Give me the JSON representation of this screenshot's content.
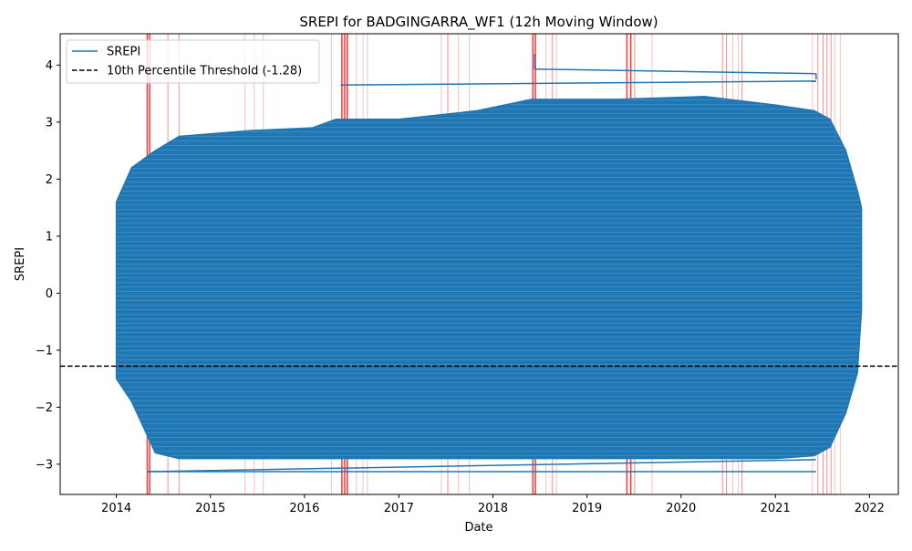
{
  "colors": {
    "series": "#1f77b4",
    "threshold": "#000000",
    "event_band": "#ff0000",
    "axes": "#000000",
    "background": "#ffffff"
  },
  "chart_data": {
    "type": "line",
    "title": "SREPI for BADGINGARRA_WF1 (12h Moving Window)",
    "xlabel": "Date",
    "ylabel": "SREPI",
    "x_type": "date",
    "xlim": [
      "2013-05-28",
      "2022-04-23"
    ],
    "ylim": [
      -3.53,
      4.55
    ],
    "x_ticks": [
      "2014",
      "2015",
      "2016",
      "2017",
      "2018",
      "2019",
      "2020",
      "2021",
      "2022"
    ],
    "x_tick_dates": [
      "2014-01-01",
      "2015-01-01",
      "2016-01-01",
      "2017-01-01",
      "2018-01-01",
      "2019-01-01",
      "2020-01-01",
      "2021-01-01",
      "2022-01-01"
    ],
    "y_ticks": [
      -3,
      -2,
      -1,
      0,
      1,
      2,
      3,
      4
    ],
    "y_tick_labels": [
      "−3",
      "−2",
      "−1",
      "0",
      "1",
      "2",
      "3",
      "4"
    ],
    "grid": false,
    "legend": {
      "position": "top-left",
      "entries": [
        {
          "label": "SREPI",
          "style": "solid-line",
          "color": "#1f77b4"
        },
        {
          "label": "10th Percentile Threshold (-1.28)",
          "style": "dashed-line",
          "color": "#000000"
        }
      ]
    },
    "threshold": {
      "value": -1.28,
      "label": "10th Percentile Threshold (-1.28)"
    },
    "data_start": "2014-01-01",
    "data_end": "2021-12-01",
    "series": [
      {
        "name": "SREPI",
        "envelope_points": [
          {
            "x": "2014-01-01",
            "y_max": 1.6,
            "y_min": -1.5
          },
          {
            "x": "2014-03-01",
            "y_max": 2.2,
            "y_min": -1.9
          },
          {
            "x": "2014-06-01",
            "y_max": 2.5,
            "y_min": -2.8
          },
          {
            "x": "2014-09-01",
            "y_max": 2.75,
            "y_min": -2.9
          },
          {
            "x": "2015-06-01",
            "y_max": 2.85,
            "y_min": -2.9
          },
          {
            "x": "2016-02-01",
            "y_max": 2.9,
            "y_min": -2.9
          },
          {
            "x": "2016-05-01",
            "y_max": 3.05,
            "y_min": -2.9
          },
          {
            "x": "2017-01-01",
            "y_max": 3.05,
            "y_min": -2.9
          },
          {
            "x": "2017-11-01",
            "y_max": 3.2,
            "y_min": -2.9
          },
          {
            "x": "2018-06-01",
            "y_max": 3.4,
            "y_min": -2.9
          },
          {
            "x": "2019-05-01",
            "y_max": 3.4,
            "y_min": -2.9
          },
          {
            "x": "2020-04-01",
            "y_max": 3.45,
            "y_min": -2.9
          },
          {
            "x": "2021-01-01",
            "y_max": 3.3,
            "y_min": -2.9
          },
          {
            "x": "2021-06-01",
            "y_max": 3.2,
            "y_min": -2.85
          },
          {
            "x": "2021-08-01",
            "y_max": 3.05,
            "y_min": -2.7
          },
          {
            "x": "2021-10-01",
            "y_max": 2.5,
            "y_min": -2.1
          },
          {
            "x": "2021-11-15",
            "y_max": 1.8,
            "y_min": -1.4
          },
          {
            "x": "2021-12-01",
            "y_max": 1.5,
            "y_min": -0.3
          }
        ],
        "trace_segments": [
          {
            "x0": "2018-06-12",
            "y0": 4.2,
            "x1": "2018-06-12",
            "y1": 3.93
          },
          {
            "x0": "2018-06-12",
            "y0": 3.93,
            "x1": "2021-06-08",
            "y1": 3.85
          },
          {
            "x0": "2021-06-08",
            "y0": 3.85,
            "x1": "2021-06-08",
            "y1": 3.75
          },
          {
            "x0": "2016-05-20",
            "y0": 3.65,
            "x1": "2021-06-08",
            "y1": 3.72
          },
          {
            "x0": "2014-05-01",
            "y0": -3.13,
            "x1": "2021-06-08",
            "y1": -3.13
          },
          {
            "x0": "2014-05-01",
            "y0": -3.13,
            "x1": "2021-06-08",
            "y1": -2.92
          }
        ]
      }
    ],
    "event_bands": [
      {
        "x": "2014-05-01",
        "strength": "strong"
      },
      {
        "x": "2014-05-10",
        "strength": "strong"
      },
      {
        "x": "2014-07-20",
        "strength": "medium"
      },
      {
        "x": "2014-09-01",
        "strength": "medium"
      },
      {
        "x": "2015-05-15",
        "strength": "light"
      },
      {
        "x": "2015-06-20",
        "strength": "light"
      },
      {
        "x": "2015-07-25",
        "strength": "light"
      },
      {
        "x": "2016-04-15",
        "strength": "light"
      },
      {
        "x": "2016-05-25",
        "strength": "strong"
      },
      {
        "x": "2016-06-05",
        "strength": "strong"
      },
      {
        "x": "2016-06-15",
        "strength": "strong"
      },
      {
        "x": "2016-07-20",
        "strength": "light"
      },
      {
        "x": "2016-08-15",
        "strength": "light"
      },
      {
        "x": "2016-09-01",
        "strength": "light"
      },
      {
        "x": "2017-06-15",
        "strength": "light"
      },
      {
        "x": "2017-07-10",
        "strength": "medium"
      },
      {
        "x": "2017-08-20",
        "strength": "light"
      },
      {
        "x": "2017-10-01",
        "strength": "light"
      },
      {
        "x": "2018-06-05",
        "strength": "strong"
      },
      {
        "x": "2018-06-15",
        "strength": "strong"
      },
      {
        "x": "2018-07-25",
        "strength": "light"
      },
      {
        "x": "2018-08-20",
        "strength": "medium"
      },
      {
        "x": "2018-09-05",
        "strength": "light"
      },
      {
        "x": "2019-06-05",
        "strength": "strong"
      },
      {
        "x": "2019-06-20",
        "strength": "strong"
      },
      {
        "x": "2019-07-05",
        "strength": "medium"
      },
      {
        "x": "2019-09-10",
        "strength": "light"
      },
      {
        "x": "2020-06-10",
        "strength": "medium"
      },
      {
        "x": "2020-06-25",
        "strength": "medium"
      },
      {
        "x": "2020-07-20",
        "strength": "light"
      },
      {
        "x": "2020-08-10",
        "strength": "light"
      },
      {
        "x": "2020-08-25",
        "strength": "medium"
      },
      {
        "x": "2021-05-25",
        "strength": "light"
      },
      {
        "x": "2021-06-15",
        "strength": "medium"
      },
      {
        "x": "2021-07-05",
        "strength": "medium"
      },
      {
        "x": "2021-07-20",
        "strength": "medium"
      },
      {
        "x": "2021-08-05",
        "strength": "medium"
      },
      {
        "x": "2021-08-20",
        "strength": "light"
      },
      {
        "x": "2021-09-10",
        "strength": "light"
      }
    ]
  }
}
